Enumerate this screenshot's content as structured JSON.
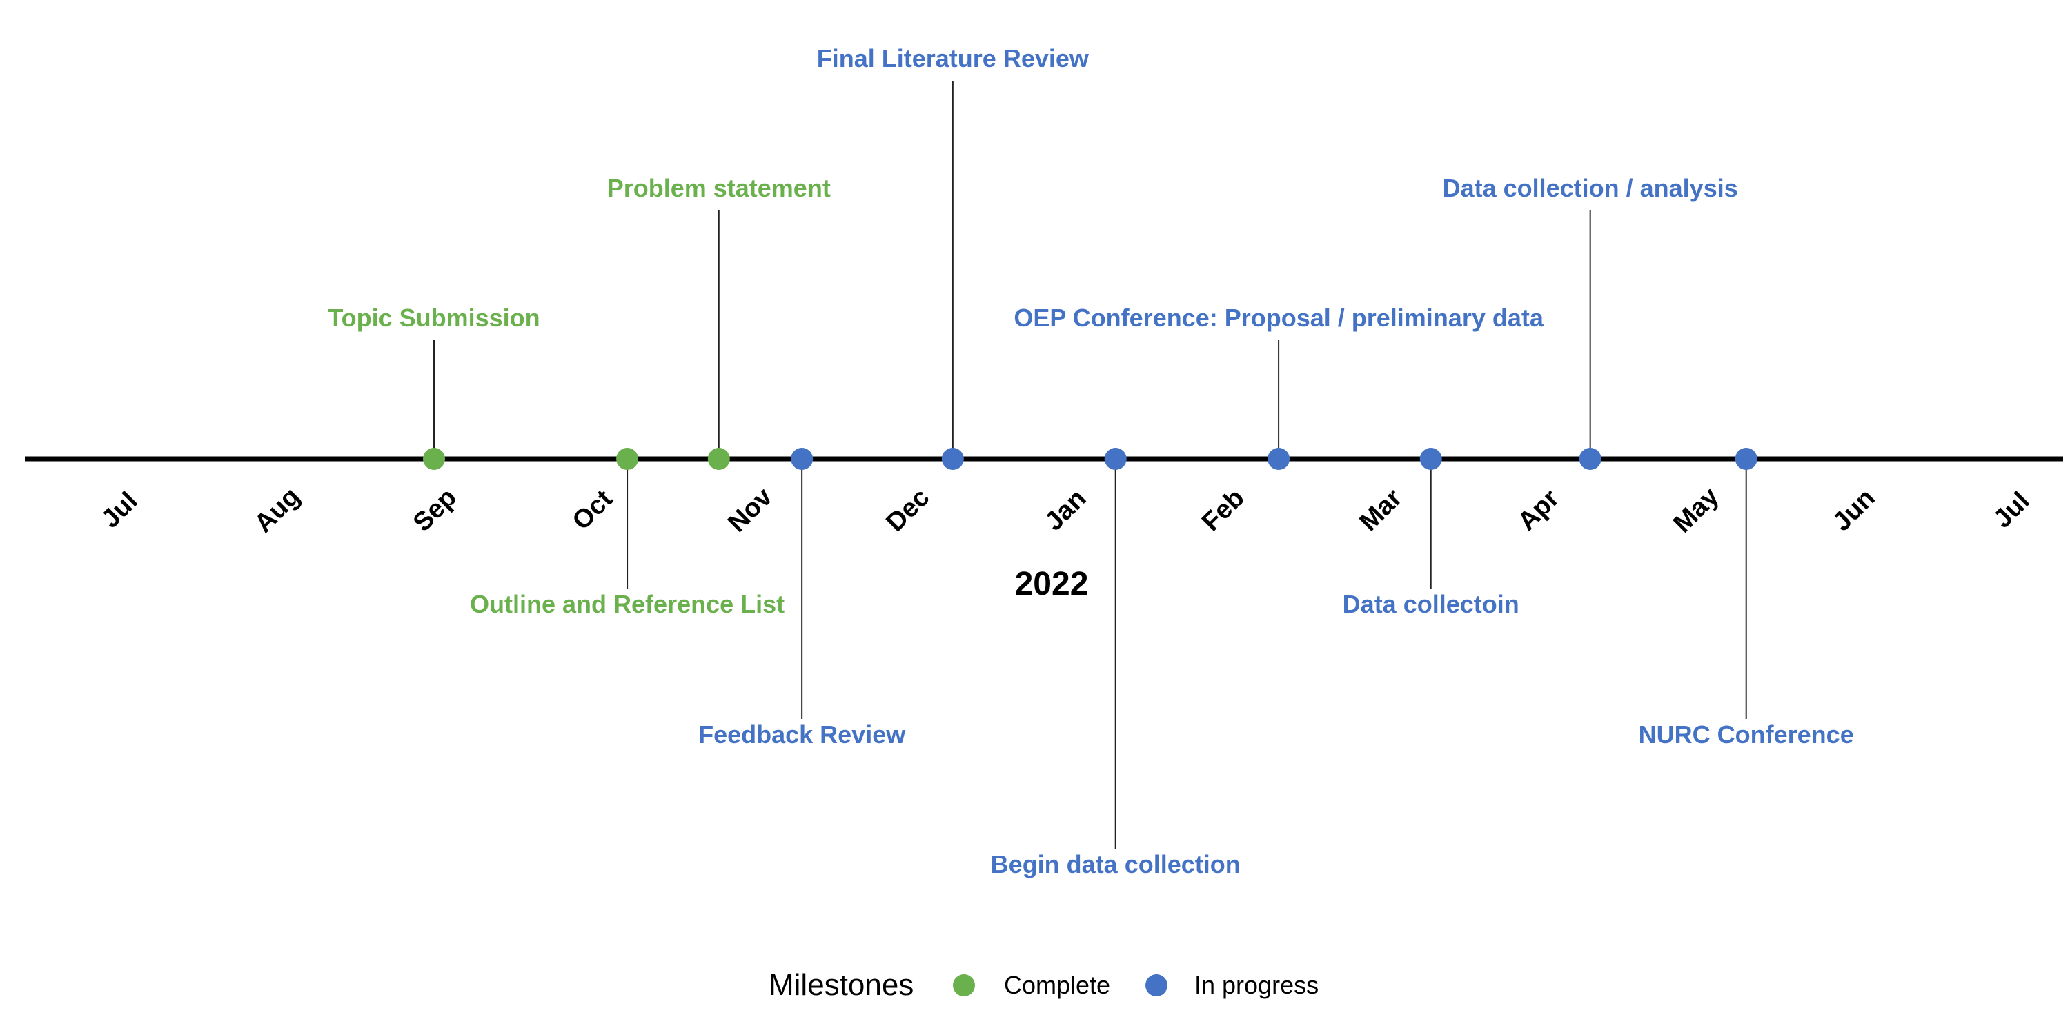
{
  "chart_data": {
    "type": "timeline",
    "months": [
      "Jul",
      "Aug",
      "Sep",
      "Oct",
      "Nov",
      "Dec",
      "Jan",
      "Feb",
      "Mar",
      "Apr",
      "May",
      "Jun",
      "Jul"
    ],
    "year_label": "2022",
    "legend": {
      "title": "Milestones",
      "items": [
        {
          "key": "complete",
          "label": "Complete",
          "color": "#6ab04c"
        },
        {
          "key": "in_progress",
          "label": "In progress",
          "color": "#4472c4"
        }
      ]
    },
    "axis_color": "#000000",
    "events": [
      {
        "label": "Topic Submission",
        "date": "2021-09-01",
        "status": "complete",
        "side": "above",
        "level": 1
      },
      {
        "label": "Outline and Reference List",
        "date": "2021-10-08",
        "status": "complete",
        "side": "below",
        "level": 1
      },
      {
        "label": "Problem statement",
        "date": "2021-10-26",
        "status": "complete",
        "side": "above",
        "level": 2
      },
      {
        "label": "Feedback Review",
        "date": "2021-11-11",
        "status": "in_progress",
        "side": "below",
        "level": 2
      },
      {
        "label": "Final Literature Review",
        "date": "2021-12-10",
        "status": "in_progress",
        "side": "above",
        "level": 3
      },
      {
        "label": "Begin data collection",
        "date": "2022-01-11",
        "status": "in_progress",
        "side": "below",
        "level": 3
      },
      {
        "label": "OEP Conference: Proposal / preliminary data",
        "date": "2022-02-11",
        "status": "in_progress",
        "side": "above",
        "level": 1
      },
      {
        "label": "Data collectoin",
        "date": "2022-03-11",
        "status": "in_progress",
        "side": "below",
        "level": 1
      },
      {
        "label": "Data collection / analysis",
        "date": "2022-04-11",
        "status": "in_progress",
        "side": "above",
        "level": 2
      },
      {
        "label": "NURC Conference",
        "date": "2022-05-11",
        "status": "in_progress",
        "side": "below",
        "level": 2
      }
    ]
  }
}
